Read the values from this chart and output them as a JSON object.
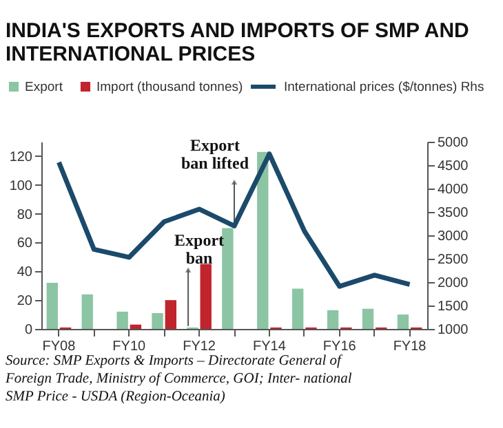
{
  "chart_data": {
    "type": "bar",
    "title": "INDIA'S EXPORTS AND IMPORTS OF SMP AND INTERNATIONAL PRICES",
    "categories": [
      "FY08",
      null,
      "FY10",
      null,
      "FY12",
      null,
      "FY14",
      null,
      "FY16",
      null,
      "FY18"
    ],
    "series": [
      {
        "name": "Export",
        "color": "#8cc5a4",
        "values": [
          32,
          24,
          12,
          11,
          1,
          70,
          123,
          28,
          13,
          14,
          10
        ]
      },
      {
        "name": "Import (thousand tonnes)",
        "color": "#c0242c",
        "values": [
          1,
          0,
          3,
          20,
          45,
          0,
          1,
          1,
          1,
          1,
          1
        ]
      },
      {
        "name": "International prices ($/tonnes) Rhs",
        "type": "line",
        "axis": "y2",
        "color": "#1b4a6b",
        "values": [
          4560,
          2700,
          2530,
          3290,
          3560,
          3200,
          4740,
          3090,
          1910,
          2150,
          1950
        ]
      }
    ],
    "ylim": [
      0,
      130
    ],
    "yticks": [
      0,
      20,
      40,
      60,
      80,
      100,
      120
    ],
    "y2lim": [
      1000,
      5000
    ],
    "y2ticks": [
      1000,
      1500,
      2000,
      2500,
      3000,
      3500,
      4000,
      4500,
      5000
    ],
    "grid": false,
    "legend": "top left",
    "marker": "none",
    "line_style": "solid",
    "annotations": [
      "Export ban",
      "Export ban lifted",
      "Source: SMP Exports & Imports – Directorate General of Foreign Trade, Ministry of Commerce, GOI; Inter- national SMP Price - USDA (Region-Oceania)"
    ]
  }
}
